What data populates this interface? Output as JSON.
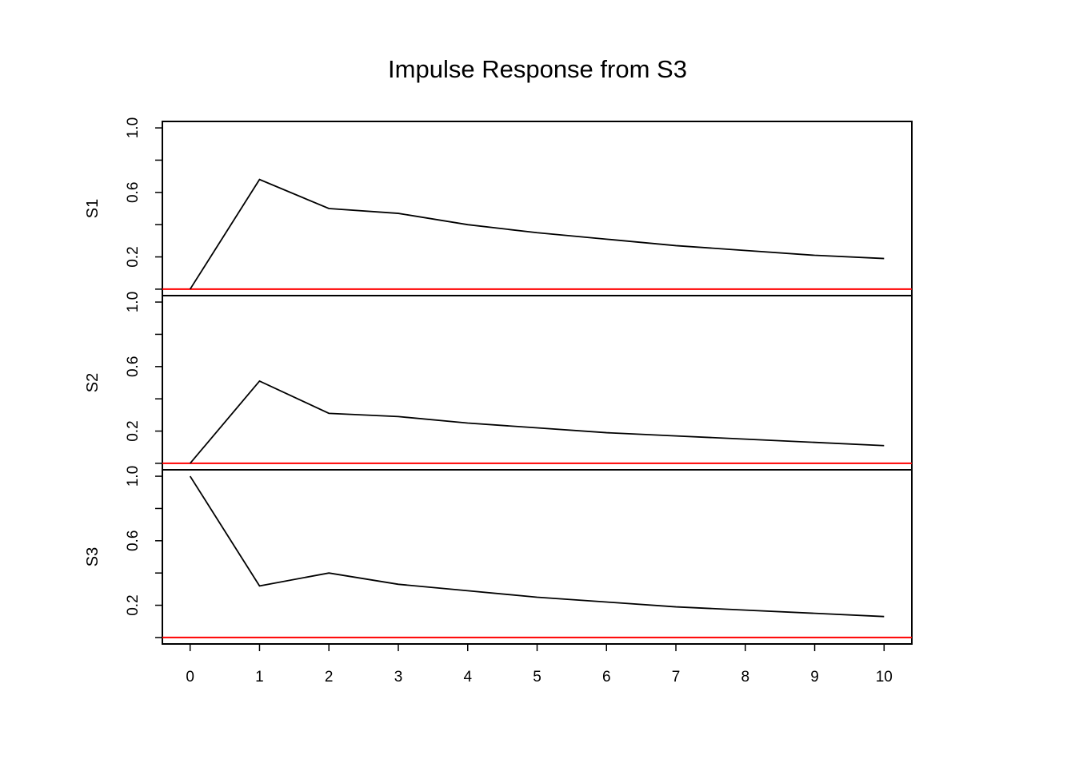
{
  "chart_data": {
    "type": "line",
    "title": "Impulse Response from S3",
    "x": [
      0,
      1,
      2,
      3,
      4,
      5,
      6,
      7,
      8,
      9,
      10
    ],
    "x_ticks": [
      "0",
      "1",
      "2",
      "3",
      "4",
      "5",
      "6",
      "7",
      "8",
      "9",
      "10"
    ],
    "xlabel": "",
    "grid": false,
    "legend": "none",
    "line_color": "#000000",
    "zero_line_color": "#ff0000",
    "panels": [
      {
        "ylabel": "S1",
        "ylim": [
          -0.04,
          1.04
        ],
        "y_ticks": [
          "0.2",
          "0.6",
          "1.0"
        ],
        "y_tick_values": [
          0.2,
          0.6,
          1.0
        ],
        "values": [
          0.0,
          0.68,
          0.5,
          0.47,
          0.4,
          0.35,
          0.31,
          0.27,
          0.24,
          0.21,
          0.19
        ],
        "zero_line": 0.0
      },
      {
        "ylabel": "S2",
        "ylim": [
          -0.04,
          1.04
        ],
        "y_ticks": [
          "0.2",
          "0.6",
          "1.0"
        ],
        "y_tick_values": [
          0.2,
          0.6,
          1.0
        ],
        "values": [
          0.0,
          0.51,
          0.31,
          0.29,
          0.25,
          0.22,
          0.19,
          0.17,
          0.15,
          0.13,
          0.11
        ],
        "zero_line": 0.0
      },
      {
        "ylabel": "S3",
        "ylim": [
          -0.04,
          1.04
        ],
        "y_ticks": [
          "0.2",
          "0.6",
          "1.0"
        ],
        "y_tick_values": [
          0.2,
          0.6,
          1.0
        ],
        "values": [
          1.0,
          0.32,
          0.4,
          0.33,
          0.29,
          0.25,
          0.22,
          0.19,
          0.17,
          0.15,
          0.13
        ],
        "zero_line": 0.0
      }
    ]
  }
}
